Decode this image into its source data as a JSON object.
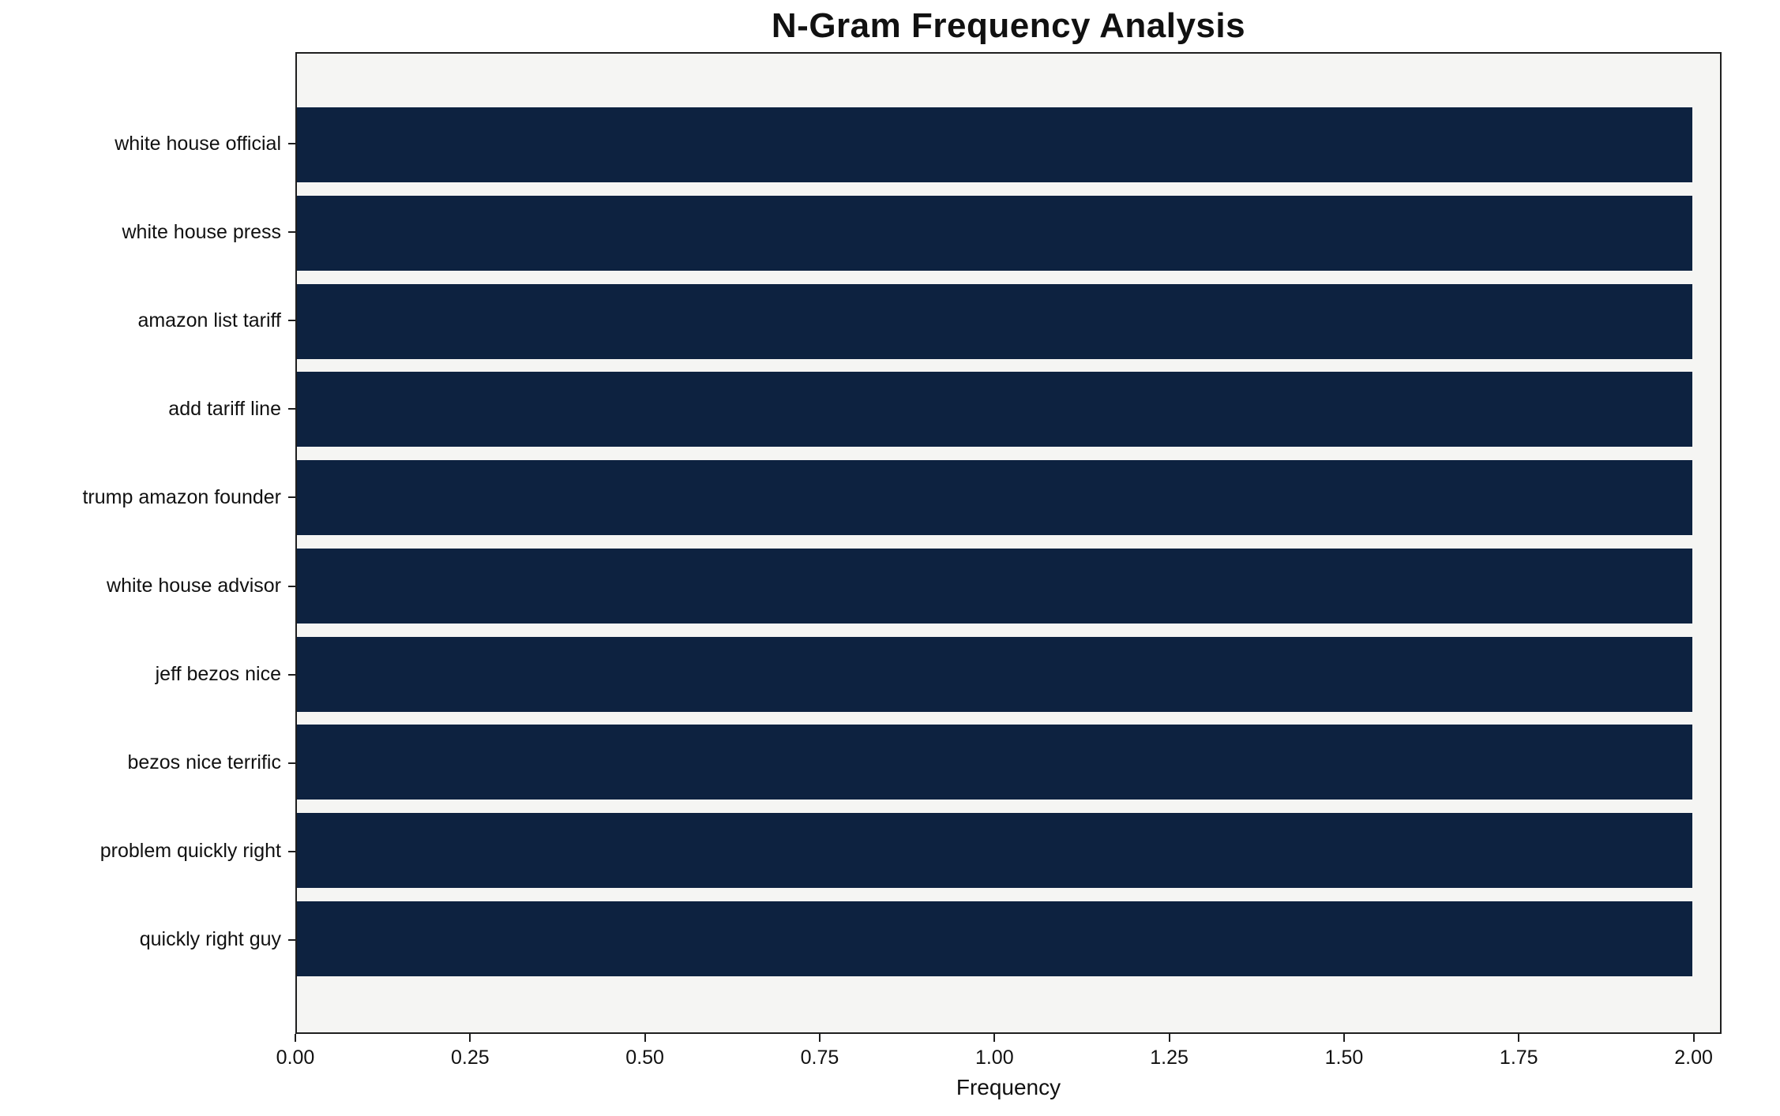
{
  "chart_data": {
    "type": "bar",
    "orientation": "horizontal",
    "title": "N-Gram Frequency Analysis",
    "xlabel": "Frequency",
    "ylabel": "",
    "categories": [
      "white house official",
      "white house press",
      "amazon list tariff",
      "add tariff line",
      "trump amazon founder",
      "white house advisor",
      "jeff bezos nice",
      "bezos nice terrific",
      "problem quickly right",
      "quickly right guy"
    ],
    "values": [
      2,
      2,
      2,
      2,
      2,
      2,
      2,
      2,
      2,
      2
    ],
    "xlim": [
      0,
      2.04
    ],
    "xticks": [
      0,
      0.25,
      0.5,
      0.75,
      1.0,
      1.25,
      1.5,
      1.75,
      2.0
    ],
    "xtick_labels": [
      "0.00",
      "0.25",
      "0.50",
      "0.75",
      "1.00",
      "1.25",
      "1.50",
      "1.75",
      "2.00"
    ],
    "grid": false,
    "legend": null,
    "colors": {
      "bar": "#0d2240",
      "plot_bg": "#f5f5f3",
      "spine": "#1f1f1f",
      "text": "#111111"
    }
  }
}
